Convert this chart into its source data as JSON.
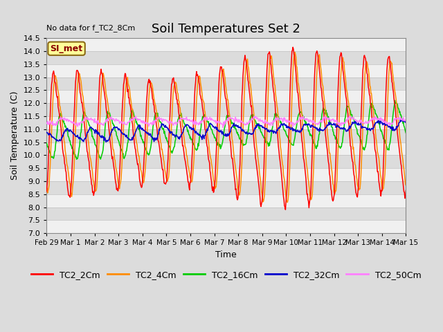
{
  "title": "Soil Temperatures Set 2",
  "no_data_text": "No data for f_TC2_8Cm",
  "legend_box_label": "SI_met",
  "ylabel": "Soil Temperature (C)",
  "xlabel": "Time",
  "ylim": [
    7.0,
    14.5
  ],
  "yticks": [
    7.0,
    7.5,
    8.0,
    8.5,
    9.0,
    9.5,
    10.0,
    10.5,
    11.0,
    11.5,
    12.0,
    12.5,
    13.0,
    13.5,
    14.0,
    14.5
  ],
  "series_colors": {
    "TC2_2Cm": "#FF0000",
    "TC2_4Cm": "#FF8C00",
    "TC2_16Cm": "#00CC00",
    "TC2_32Cm": "#0000CC",
    "TC2_50Cm": "#FF80FF"
  },
  "series_labels": [
    "TC2_2Cm",
    "TC2_4Cm",
    "TC2_16Cm",
    "TC2_32Cm",
    "TC2_50Cm"
  ],
  "x_tick_labels": [
    "Feb 29",
    "Mar 1",
    "Mar 2",
    "Mar 3",
    "Mar 4",
    "Mar 5",
    "Mar 6",
    "Mar 7",
    "Mar 8",
    "Mar 9",
    "Mar 10",
    "Mar 11",
    "Mar 12",
    "Mar 13",
    "Mar 14",
    "Mar 15"
  ],
  "bg_color": "#DCDCDC",
  "plot_bg_color": "#DCDCDC",
  "stripe_color": "#F0F0F0",
  "title_fontsize": 13,
  "axis_label_fontsize": 9,
  "tick_fontsize": 8,
  "legend_fontsize": 9
}
